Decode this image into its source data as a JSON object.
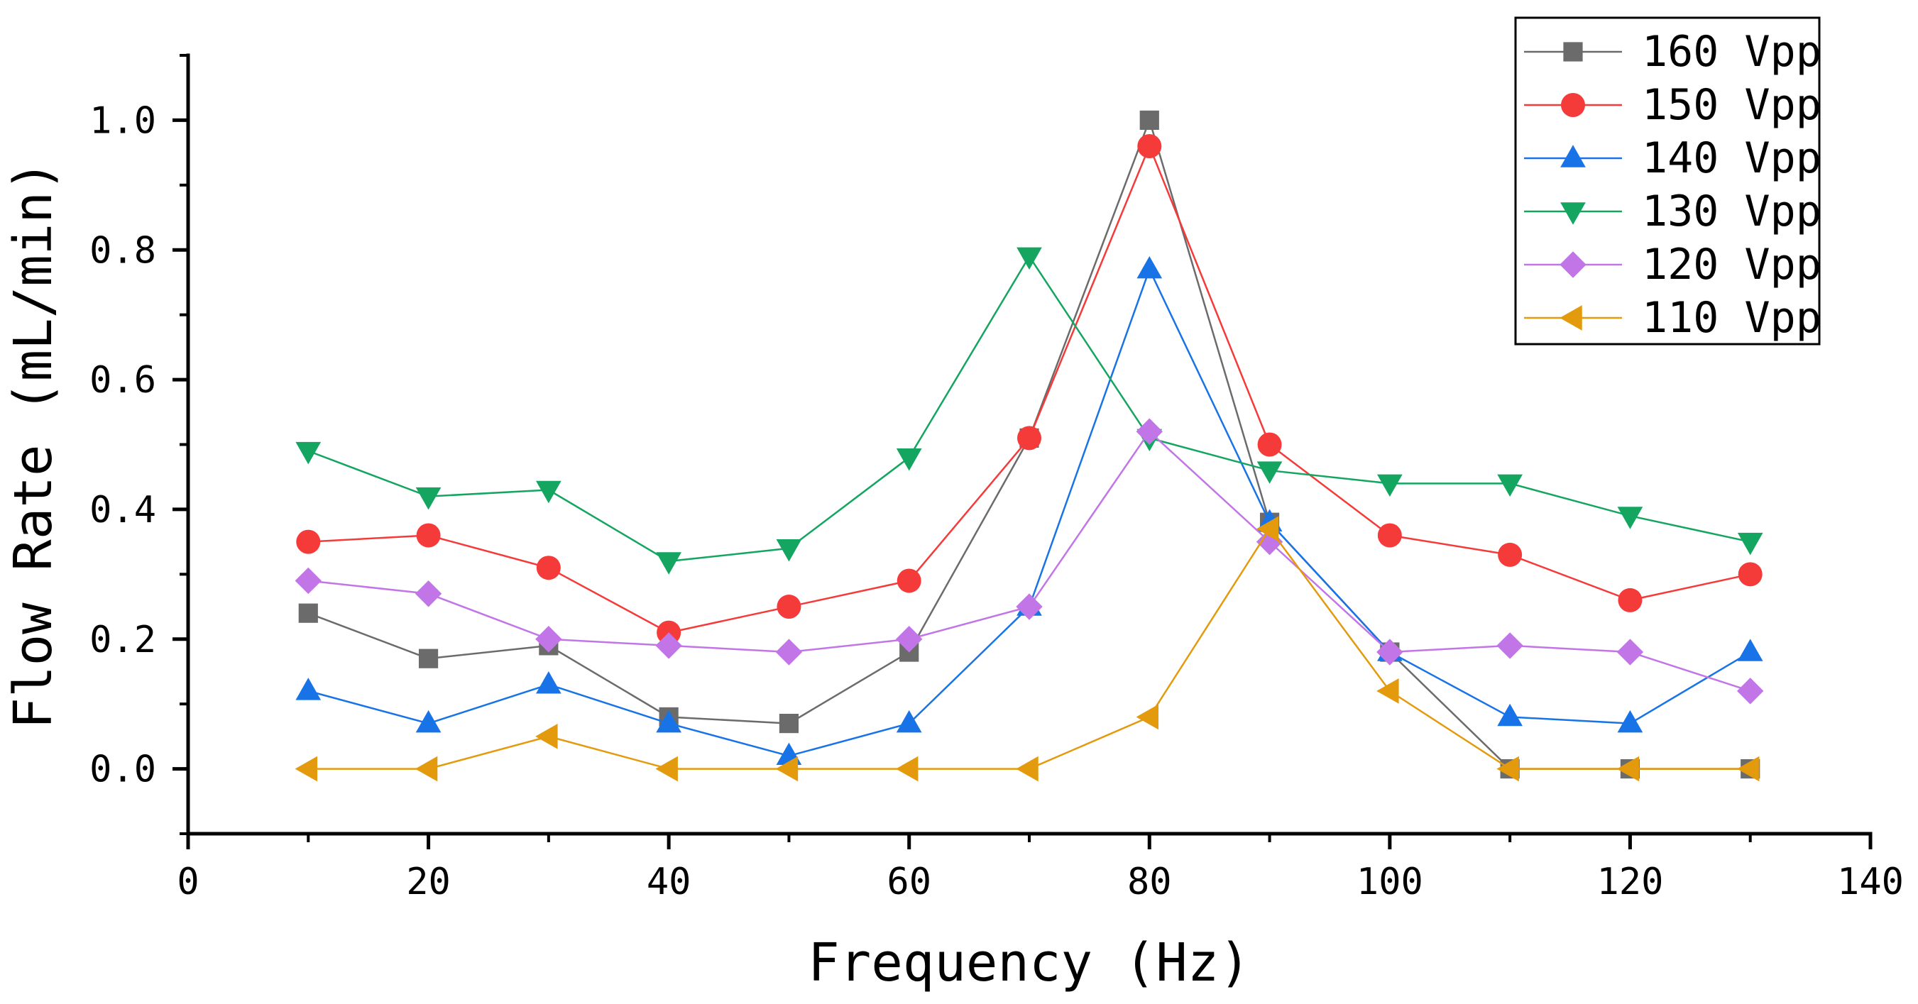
{
  "chart_data": {
    "type": "line",
    "title": "",
    "xlabel": "Frequency (Hz)",
    "ylabel": "Flow Rate (mL/min)",
    "xlim": [
      0,
      140
    ],
    "ylim": [
      -0.1,
      1.1
    ],
    "x_ticks": [
      0,
      20,
      40,
      60,
      80,
      100,
      120,
      140
    ],
    "x_tick_labels": [
      "0",
      "20",
      "40",
      "60",
      "80",
      "100",
      "120",
      "140"
    ],
    "y_ticks": [
      0.0,
      0.2,
      0.4,
      0.6,
      0.8,
      1.0
    ],
    "y_tick_labels": [
      "0.0",
      "0.2",
      "0.4",
      "0.6",
      "0.8",
      "1.0"
    ],
    "grid": false,
    "legend_position": "top-right",
    "x": [
      10,
      20,
      30,
      40,
      50,
      60,
      70,
      80,
      90,
      100,
      110,
      120,
      130
    ],
    "series": [
      {
        "name": "160 Vpp",
        "color": "#6b6b6b",
        "marker": "square",
        "values": [
          0.24,
          0.17,
          0.19,
          0.08,
          0.07,
          0.18,
          0.51,
          1.0,
          0.38,
          0.18,
          0.0,
          0.0,
          0.0
        ]
      },
      {
        "name": "150 Vpp",
        "color": "#f53a3a",
        "marker": "circle",
        "values": [
          0.35,
          0.36,
          0.31,
          0.21,
          0.25,
          0.29,
          0.51,
          0.96,
          0.5,
          0.36,
          0.33,
          0.26,
          0.3
        ]
      },
      {
        "name": "140 Vpp",
        "color": "#1874e6",
        "marker": "triangle-up",
        "values": [
          0.12,
          0.07,
          0.13,
          0.07,
          0.02,
          0.07,
          0.25,
          0.77,
          0.38,
          0.18,
          0.08,
          0.07,
          0.18
        ]
      },
      {
        "name": "130 Vpp",
        "color": "#14a660",
        "marker": "triangle-down",
        "values": [
          0.49,
          0.42,
          0.43,
          0.32,
          0.34,
          0.48,
          0.79,
          0.51,
          0.46,
          0.44,
          0.44,
          0.39,
          0.35
        ]
      },
      {
        "name": "120 Vpp",
        "color": "#c275e6",
        "marker": "diamond",
        "values": [
          0.29,
          0.27,
          0.2,
          0.19,
          0.18,
          0.2,
          0.25,
          0.52,
          0.35,
          0.18,
          0.19,
          0.18,
          0.12
        ]
      },
      {
        "name": "110 Vpp",
        "color": "#e39b0d",
        "marker": "triangle-left",
        "values": [
          0.0,
          0.0,
          0.05,
          0.0,
          0.0,
          0.0,
          0.0,
          0.08,
          0.37,
          0.12,
          0.0,
          0.0,
          0.0
        ]
      }
    ]
  }
}
